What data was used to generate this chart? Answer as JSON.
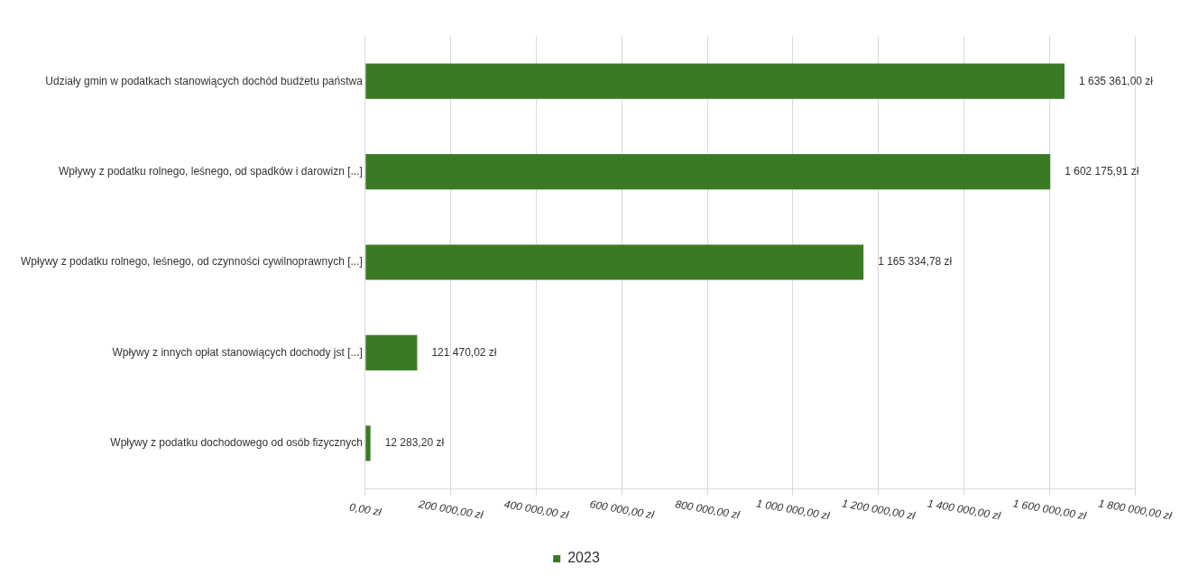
{
  "chart_data": {
    "type": "bar",
    "orientation": "horizontal",
    "categories": [
      "Udziały gmin w podatkach stanowiących dochód budżetu państwa",
      "Wpływy z podatku rolnego, leśnego, od spadków i darowizn [...]",
      "Wpływy z podatku rolnego, leśnego, od czynności cywilnoprawnych [...]",
      "Wpływy z innych opłat stanowiących dochody jst [...]",
      "Wpływy z podatku dochodowego od osób fizycznych"
    ],
    "series": [
      {
        "name": "2023",
        "color": "#3b7a25",
        "values": [
          1635361.0,
          1602175.91,
          1165334.78,
          121470.02,
          12283.2
        ],
        "value_labels": [
          "1 635 361,00 zł",
          "1 602 175,91 zł",
          "1 165 334,78 zł",
          "121 470,02 zł",
          "12 283,20 zł"
        ]
      }
    ],
    "xlim": [
      0,
      1800000
    ],
    "xticks": [
      {
        "value": 0,
        "label": "0,00 zł"
      },
      {
        "value": 200000,
        "label": "200 000,00 zł"
      },
      {
        "value": 400000,
        "label": "400 000,00 zł"
      },
      {
        "value": 600000,
        "label": "600 000,00 zł"
      },
      {
        "value": 800000,
        "label": "800 000,00 zł"
      },
      {
        "value": 1000000,
        "label": "1 000 000,00 zł"
      },
      {
        "value": 1200000,
        "label": "1 200 000,00 zł"
      },
      {
        "value": 1400000,
        "label": "1 400 000,00 zł"
      },
      {
        "value": 1600000,
        "label": "1 600 000,00 zł"
      },
      {
        "value": 1800000,
        "label": "1 800 000,00 zł"
      }
    ],
    "grid": "x",
    "legend": "bottom"
  }
}
